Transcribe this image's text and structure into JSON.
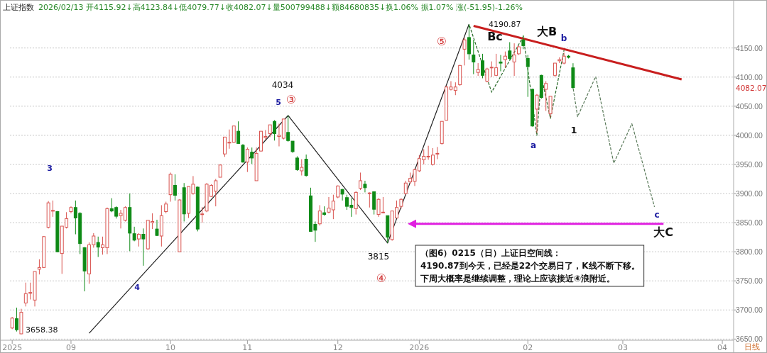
{
  "chart_data": {
    "type": "candlestick",
    "title": "上证指数",
    "subtitle": "2026/02/13 开4115.92↓高4123.84↓低4079.77↓收4082.07↓量500799488↓额84680835↓换1.06% 振1.07% 涨(-51.95)-1.26%",
    "categories": [
      "2025",
      null,
      null,
      null,
      null,
      null,
      null,
      null,
      null,
      null,
      null,
      null,
      null,
      "09",
      null,
      null,
      null,
      null,
      null,
      null,
      null,
      null,
      null,
      null,
      null,
      null,
      null,
      null,
      null,
      null,
      null,
      null,
      null,
      null,
      null,
      "10",
      null,
      null,
      null,
      null,
      null,
      null,
      null,
      null,
      null,
      null,
      null,
      null,
      null,
      null,
      null,
      null,
      "11",
      null,
      null,
      null,
      null,
      null,
      null,
      null,
      null,
      null,
      null,
      null,
      null,
      null,
      null,
      null,
      null,
      null,
      null,
      null,
      "12",
      null,
      null,
      null,
      null,
      null,
      null,
      null,
      null,
      null,
      null,
      null,
      null,
      null,
      null,
      null,
      null,
      null,
      "2026",
      null,
      null,
      null,
      null,
      null,
      null,
      null,
      null,
      null,
      null,
      null,
      null,
      null,
      null,
      null,
      null,
      null,
      null,
      null,
      null,
      null,
      null,
      null,
      "02",
      null,
      null,
      null,
      null,
      null,
      null,
      null,
      null,
      null,
      null,
      null,
      null,
      null,
      null,
      null,
      null,
      null,
      null,
      null,
      null,
      "03",
      null,
      null,
      null,
      null,
      null,
      null,
      null,
      null,
      null,
      null,
      null,
      null,
      null,
      null,
      null,
      null,
      null,
      null,
      null,
      null,
      null,
      "04",
      null,
      null
    ],
    "ohlc": [
      [
        3669,
        3688,
        3667,
        3686
      ],
      [
        3685,
        3704,
        3663,
        3666
      ],
      [
        3659,
        3702,
        3658.38,
        3696
      ],
      [
        3712,
        3747,
        3706,
        3728
      ],
      [
        3729,
        3747,
        3718,
        3730
      ],
      [
        3717,
        3766,
        3706,
        3766
      ],
      [
        3770,
        3787,
        3761,
        3773
      ],
      [
        3773,
        3827,
        3772,
        3826
      ],
      [
        3842,
        3887,
        3840,
        3884
      ],
      [
        3870,
        3888,
        3860,
        3871
      ],
      [
        3869,
        3870,
        3799,
        3800
      ],
      [
        3797,
        3844,
        3762,
        3844
      ],
      [
        3842,
        3868,
        3840,
        3857
      ],
      [
        3869,
        3878,
        3866,
        3876
      ],
      [
        3876,
        3888,
        3830,
        3858
      ],
      [
        3866,
        3868,
        3796,
        3814
      ],
      [
        3807,
        3808,
        3732,
        3767
      ],
      [
        3762,
        3816,
        3745,
        3812
      ],
      [
        3812,
        3832,
        3807,
        3827
      ],
      [
        3816,
        3826,
        3791,
        3808
      ],
      [
        3807,
        3826,
        3795,
        3812
      ],
      [
        3807,
        3876,
        3796,
        3874
      ],
      [
        3874,
        3892,
        3868,
        3870
      ],
      [
        3876,
        3878,
        3857,
        3861
      ],
      [
        3862,
        3872,
        3840,
        3866
      ],
      [
        3854,
        3878,
        3852,
        3876
      ],
      [
        3876,
        3900,
        3801,
        3832
      ],
      [
        3831,
        3843,
        3818,
        3820
      ],
      [
        3822,
        3832,
        3809,
        3830
      ],
      [
        3830,
        3840,
        3776,
        3822
      ],
      [
        3805,
        3854,
        3803,
        3854
      ],
      [
        3850,
        3866,
        3839,
        3852
      ],
      [
        3839,
        3855,
        3827,
        3828
      ],
      [
        3827,
        3880,
        3809,
        3862
      ],
      [
        3869,
        3886,
        3866,
        3882
      ],
      [
        3898,
        3936,
        3886,
        3933
      ],
      [
        3914,
        3933,
        3888,
        3897
      ],
      [
        3800,
        3890,
        3800,
        3889
      ],
      [
        3910,
        3918,
        3852,
        3865
      ],
      [
        3866,
        3912,
        3858,
        3912
      ],
      [
        3900,
        3930,
        3898,
        3916
      ],
      [
        3911,
        3912,
        3835,
        3839
      ],
      [
        3864,
        3877,
        3850,
        3865
      ],
      [
        3870,
        3918,
        3868,
        3916
      ],
      [
        3895,
        3916,
        3894,
        3914
      ],
      [
        3904,
        3925,
        3878,
        3922
      ],
      [
        3928,
        3950,
        3928,
        3949
      ],
      [
        3968,
        3997,
        3963,
        3997
      ],
      [
        3987,
        4010,
        3977,
        3988
      ],
      [
        3988,
        4016,
        3987,
        4016
      ],
      [
        4007,
        4024,
        3986,
        3986
      ],
      [
        3983,
        3985,
        3953,
        3954
      ],
      [
        3954,
        3979,
        3937,
        3976
      ],
      [
        3971,
        3979,
        3951,
        3961
      ],
      [
        3922,
        3979,
        3922,
        3969
      ],
      [
        3973,
        4007,
        3972,
        4007
      ],
      [
        3996,
        4009,
        3993,
        3998
      ],
      [
        4003,
        4018,
        3997,
        4018
      ],
      [
        4024,
        4026,
        3991,
        4003
      ],
      [
        3998,
        4020,
        3981,
        4000
      ],
      [
        3995,
        4028,
        3993,
        4028
      ],
      [
        4005,
        4034,
        3989,
        3991
      ],
      [
        3990,
        3990,
        3970,
        3972
      ],
      [
        3961,
        3964,
        3939,
        3941
      ],
      [
        3939,
        3959,
        3931,
        3945
      ],
      [
        3959,
        3967,
        3929,
        3931
      ],
      [
        3896,
        3910,
        3835,
        3835
      ],
      [
        3847,
        3852,
        3817,
        3837
      ],
      [
        3848,
        3880,
        3845,
        3870
      ],
      [
        3867,
        3878,
        3862,
        3864
      ],
      [
        3868,
        3894,
        3866,
        3875
      ],
      [
        3872,
        3898,
        3856,
        3887
      ],
      [
        3894,
        3914,
        3892,
        3913
      ],
      [
        3907,
        3908,
        3888,
        3899
      ],
      [
        3893,
        3898,
        3872,
        3878
      ],
      [
        3880,
        3892,
        3860,
        3876
      ],
      [
        3874,
        3904,
        3864,
        3902
      ],
      [
        3909,
        3936,
        3906,
        3922
      ],
      [
        3916,
        3922,
        3902,
        3910
      ],
      [
        3900,
        3902,
        3876,
        3901
      ],
      [
        3903,
        3903,
        3864,
        3873
      ],
      [
        3864,
        3892,
        3860,
        3890
      ],
      [
        3867,
        3894,
        3866,
        3868
      ],
      [
        3862,
        3862,
        3815,
        3825
      ],
      [
        3821,
        3870,
        3819,
        3870
      ],
      [
        3858,
        3888,
        3858,
        3876
      ],
      [
        3878,
        3892,
        3874,
        3890
      ],
      [
        3900,
        3922,
        3898,
        3918
      ],
      [
        3920,
        3936,
        3916,
        3926
      ],
      [
        3921,
        3943,
        3913,
        3941
      ],
      [
        3939,
        3966,
        3937,
        3960
      ],
      [
        3958,
        3976,
        3950,
        3964
      ],
      [
        3963,
        3982,
        3958,
        3964
      ],
      [
        3950,
        3978,
        3948,
        3966
      ],
      [
        3968,
        3980,
        3959,
        3969
      ],
      [
        3986,
        4024,
        3984,
        4024
      ],
      [
        4026,
        4085,
        4026,
        4083
      ],
      [
        4079,
        4093,
        4077,
        4083
      ],
      [
        4077,
        4091,
        4069,
        4083
      ],
      [
        4087,
        4121,
        4085,
        4120
      ],
      [
        4148,
        4168,
        4120,
        4164
      ],
      [
        4168,
        4190.87,
        4130,
        4140
      ],
      [
        4138,
        4164,
        4105,
        4126
      ],
      [
        4108,
        4124,
        4102,
        4113
      ],
      [
        4128,
        4140,
        4098,
        4103
      ],
      [
        4093,
        4116,
        4091,
        4114
      ],
      [
        4116,
        4127,
        4100,
        4117
      ],
      [
        4103,
        4140,
        4102,
        4116
      ],
      [
        4126,
        4138,
        4110,
        4124
      ],
      [
        4130,
        4144,
        4116,
        4136
      ],
      [
        4145,
        4160,
        4130,
        4132
      ],
      [
        4126,
        4158,
        4102,
        4138
      ],
      [
        4140,
        4154,
        4138,
        4152
      ],
      [
        4164,
        4172,
        4148,
        4154
      ],
      [
        4132,
        4138,
        4066,
        4118
      ],
      [
        4079,
        4080,
        4015,
        4016
      ],
      [
        4045,
        4071,
        4004,
        4069
      ],
      [
        4103,
        4104,
        4063,
        4065
      ],
      [
        4079,
        4093,
        4042,
        4089
      ],
      [
        4037,
        4067,
        4031,
        4067
      ],
      [
        4103,
        4124,
        4100,
        4124
      ],
      [
        4128,
        4134,
        4124,
        4130
      ],
      [
        4124,
        4142,
        4122,
        4136
      ],
      [
        4136,
        4138,
        4132,
        4134
      ],
      [
        4115.92,
        4123.84,
        4079.77,
        4082.07
      ],
      null,
      null,
      null,
      null,
      null,
      null,
      null,
      null,
      null,
      null,
      null,
      null,
      null,
      null,
      null,
      null,
      null,
      null,
      null,
      null,
      null,
      null,
      null,
      null,
      null,
      null,
      null,
      null,
      null,
      null,
      null,
      null,
      null,
      null,
      null
    ],
    "series": [
      {
        "type": "line",
        "color": "#222222",
        "values": [
          null,
          null,
          null,
          null,
          null,
          null,
          null,
          null,
          null,
          null,
          null,
          null,
          null,
          null,
          null,
          null,
          null,
          3660,
          null,
          null,
          null,
          null,
          null,
          null,
          null,
          null,
          null,
          null,
          null,
          null,
          null,
          null,
          null,
          null,
          null,
          null,
          null,
          null,
          null,
          null,
          null,
          null,
          null,
          null,
          null,
          null,
          null,
          null,
          null,
          null,
          null,
          null,
          null,
          null,
          null,
          null,
          null,
          null,
          null,
          null,
          null,
          4034,
          null,
          null,
          null,
          null,
          null,
          null,
          null,
          null,
          null,
          null,
          null,
          null,
          null,
          null,
          null,
          null,
          null,
          null,
          null,
          null,
          null,
          3815,
          null,
          null,
          null,
          null,
          null,
          null,
          null,
          null,
          null,
          null,
          null,
          null,
          null,
          null,
          null,
          null,
          null,
          4191,
          null,
          null,
          null,
          null,
          null,
          null,
          null,
          null,
          null,
          null,
          null,
          null,
          null,
          null,
          null,
          null,
          null,
          null,
          null,
          null,
          null,
          null,
          null,
          null,
          null,
          null,
          null,
          null,
          null,
          null,
          null,
          null,
          null,
          null,
          null,
          null,
          null,
          null,
          null,
          null,
          null,
          null,
          null,
          null,
          null,
          null,
          null,
          null,
          null,
          null,
          null,
          null,
          null,
          null,
          null,
          null,
          null,
          null
        ]
      },
      {
        "type": "line",
        "color": "#2a6a2a",
        "line_style": "dashed",
        "values": [
          null,
          null,
          null,
          null,
          null,
          null,
          null,
          null,
          null,
          null,
          null,
          null,
          null,
          null,
          null,
          null,
          null,
          null,
          null,
          null,
          null,
          null,
          null,
          null,
          null,
          null,
          null,
          null,
          null,
          null,
          null,
          null,
          null,
          null,
          null,
          null,
          null,
          null,
          null,
          null,
          null,
          null,
          null,
          null,
          null,
          null,
          null,
          null,
          null,
          null,
          null,
          null,
          null,
          null,
          null,
          null,
          null,
          null,
          null,
          null,
          null,
          null,
          null,
          null,
          null,
          null,
          null,
          null,
          null,
          null,
          null,
          null,
          null,
          null,
          null,
          null,
          null,
          null,
          null,
          null,
          null,
          null,
          null,
          null,
          null,
          null,
          null,
          null,
          null,
          null,
          null,
          null,
          null,
          null,
          null,
          null,
          null,
          null,
          null,
          null,
          null,
          4191,
          null,
          null,
          null,
          null,
          4074,
          null,
          null,
          null,
          null,
          null,
          null,
          4170,
          null,
          null,
          4000,
          4101,
          null,
          4029,
          null,
          null,
          4146,
          null,
          null,
          null,
          null,
          null,
          null,
          null,
          null,
          null,
          null,
          null,
          null,
          null,
          null,
          null,
          null,
          null,
          null,
          null,
          null,
          null,
          null,
          null,
          null,
          null,
          null,
          null,
          null,
          null,
          null,
          null,
          null,
          null,
          null,
          null,
          null,
          null
        ]
      },
      {
        "type": "line",
        "color": "#5a7a5a",
        "line_style": "dashed",
        "values": [
          null,
          null,
          null,
          null,
          null,
          null,
          null,
          null,
          null,
          null,
          null,
          null,
          null,
          null,
          null,
          null,
          null,
          null,
          null,
          null,
          null,
          null,
          null,
          null,
          null,
          null,
          null,
          null,
          null,
          null,
          null,
          null,
          null,
          null,
          null,
          null,
          null,
          null,
          null,
          null,
          null,
          null,
          null,
          null,
          null,
          null,
          null,
          null,
          null,
          null,
          null,
          null,
          null,
          null,
          null,
          null,
          null,
          null,
          null,
          null,
          null,
          null,
          null,
          null,
          null,
          null,
          null,
          null,
          null,
          null,
          null,
          null,
          null,
          null,
          null,
          null,
          null,
          null,
          null,
          null,
          null,
          null,
          null,
          null,
          null,
          null,
          null,
          null,
          null,
          null,
          null,
          null,
          null,
          null,
          null,
          null,
          null,
          null,
          null,
          null,
          null,
          null,
          null,
          null,
          null,
          null,
          null,
          null,
          null,
          null,
          null,
          null,
          null,
          null,
          null,
          null,
          null,
          null,
          null,
          null,
          null,
          null,
          null,
          null,
          4082,
          4032,
          null,
          null,
          null,
          4101,
          null,
          null,
          null,
          3952,
          null,
          null,
          null,
          4020,
          null,
          null,
          null,
          null,
          3877,
          null,
          null,
          null,
          null,
          null,
          null,
          null,
          null,
          null,
          null,
          null,
          null,
          null,
          null,
          null,
          null,
          null
        ]
      },
      {
        "type": "line",
        "color": "#c81e1e",
        "values": [
          null,
          null,
          null,
          null,
          null,
          null,
          null,
          null,
          null,
          null,
          null,
          null,
          null,
          null,
          null,
          null,
          null,
          null,
          null,
          null,
          null,
          null,
          null,
          null,
          null,
          null,
          null,
          null,
          null,
          null,
          null,
          null,
          null,
          null,
          null,
          null,
          null,
          null,
          null,
          null,
          null,
          null,
          null,
          null,
          null,
          null,
          null,
          null,
          null,
          null,
          null,
          null,
          null,
          null,
          null,
          null,
          null,
          null,
          null,
          null,
          null,
          null,
          null,
          null,
          null,
          null,
          null,
          null,
          null,
          null,
          null,
          null,
          null,
          null,
          null,
          null,
          null,
          null,
          null,
          null,
          null,
          null,
          null,
          null,
          null,
          null,
          null,
          null,
          null,
          null,
          null,
          null,
          null,
          null,
          null,
          null,
          null,
          null,
          null,
          null,
          null,
          null,
          4188,
          null,
          null,
          null,
          null,
          null,
          null,
          null,
          null,
          null,
          null,
          null,
          null,
          null,
          null,
          null,
          null,
          null,
          null,
          null,
          null,
          null,
          null,
          null,
          null,
          null,
          null,
          null,
          null,
          null,
          null,
          null,
          null,
          null,
          null,
          null,
          null,
          null,
          null,
          null,
          null,
          null,
          null,
          null,
          null,
          null,
          4096,
          null,
          null,
          null,
          null,
          null,
          null,
          null,
          null,
          null,
          null,
          null
        ]
      },
      {
        "type": "line",
        "color": "#e020e0",
        "values": [
          null,
          null,
          null,
          null,
          null,
          null,
          null,
          null,
          null,
          null,
          null,
          null,
          null,
          null,
          null,
          null,
          null,
          null,
          null,
          null,
          null,
          null,
          null,
          null,
          null,
          null,
          null,
          null,
          null,
          null,
          null,
          null,
          null,
          null,
          null,
          null,
          null,
          null,
          null,
          null,
          null,
          null,
          null,
          null,
          null,
          null,
          null,
          null,
          null,
          null,
          null,
          null,
          null,
          null,
          null,
          null,
          null,
          null,
          null,
          null,
          null,
          null,
          null,
          null,
          null,
          null,
          null,
          null,
          null,
          null,
          null,
          null,
          null,
          null,
          null,
          null,
          null,
          null,
          null,
          null,
          null,
          null,
          null,
          null,
          null,
          null,
          null,
          null,
          null,
          3848,
          null,
          null,
          null,
          null,
          null,
          null,
          null,
          null,
          null,
          null,
          null,
          null,
          null,
          null,
          null,
          null,
          null,
          null,
          null,
          null,
          null,
          null,
          null,
          null,
          null,
          null,
          null,
          null,
          null,
          null,
          null,
          null,
          null,
          null,
          null,
          null,
          null,
          null,
          null,
          null,
          null,
          null,
          null,
          null,
          null,
          null,
          null,
          null,
          null,
          null,
          null,
          null,
          null,
          null,
          3848,
          null,
          null,
          null,
          null,
          null,
          null,
          null,
          null,
          null,
          null,
          null,
          null,
          null,
          null,
          null
        ]
      }
    ],
    "ylim": [
      3648,
      4230
    ],
    "yticks": [
      {
        "value": 3650,
        "label": "3650.00"
      },
      {
        "value": 3700,
        "label": "3700.00"
      },
      {
        "value": 3750,
        "label": "3750.00"
      },
      {
        "value": 3800,
        "label": "3800.00"
      },
      {
        "value": 3850,
        "label": "3850.00"
      },
      {
        "value": 3900,
        "label": "3900.00"
      },
      {
        "value": 3950,
        "label": "3950.00"
      },
      {
        "value": 4000,
        "label": "4000.00"
      },
      {
        "value": 4050,
        "label": "4050.00"
      },
      {
        "value": 4100,
        "label": "4100.00"
      },
      {
        "value": 4150,
        "label": "4150.00"
      }
    ],
    "grid": "y",
    "annotations": [
      "3658.38",
      "4034",
      "3815",
      "4190.87",
      "3",
      "5",
      "4",
      "③",
      "④",
      "⑤",
      "Bc",
      "大B",
      "b",
      "a",
      "1",
      "c",
      "大C",
      "（图6）0215（日）上证日空间线：",
      "4190.87到今天，已经是22个交易日了，K线不断下移。",
      "下周大概率是继续调整，理论上应该接近④浪附近。",
      "4082.07",
      "日线"
    ]
  }
}
